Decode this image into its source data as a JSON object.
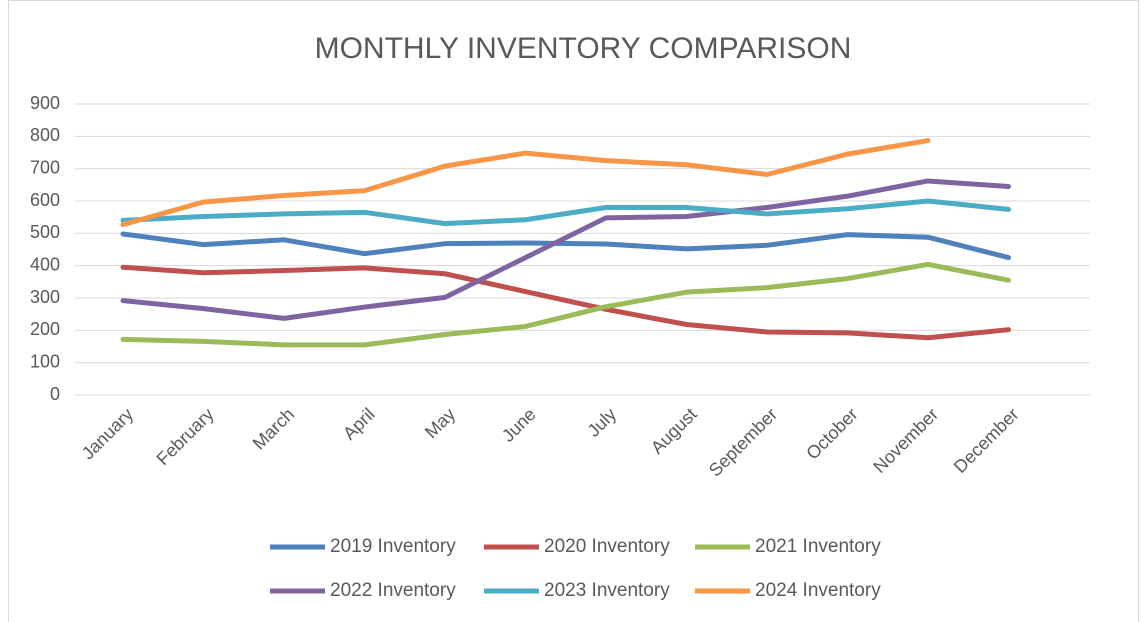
{
  "chart_data": {
    "type": "line",
    "title": "MONTHLY INVENTORY COMPARISON",
    "categories": [
      "January",
      "February",
      "March",
      "April",
      "May",
      "June",
      "July",
      "August",
      "September",
      "October",
      "November",
      "December"
    ],
    "series": [
      {
        "name": "2019 Inventory",
        "color": "#4f81bd",
        "values": [
          498,
          465,
          480,
          437,
          468,
          470,
          467,
          452,
          463,
          496,
          488,
          425
        ]
      },
      {
        "name": "2020 Inventory",
        "color": "#c0504d",
        "values": [
          395,
          378,
          385,
          393,
          375,
          320,
          265,
          218,
          195,
          192,
          177,
          202
        ]
      },
      {
        "name": "2021 Inventory",
        "color": "#9bbb59",
        "values": [
          172,
          166,
          155,
          155,
          187,
          212,
          273,
          318,
          332,
          360,
          404,
          355
        ]
      },
      {
        "name": "2022 Inventory",
        "color": "#8064a2",
        "values": [
          292,
          267,
          237,
          272,
          302,
          425,
          548,
          552,
          580,
          615,
          662,
          645
        ]
      },
      {
        "name": "2023 Inventory",
        "color": "#4bacc6",
        "values": [
          540,
          552,
          560,
          565,
          530,
          542,
          580,
          580,
          560,
          576,
          600,
          574
        ]
      },
      {
        "name": "2024 Inventory",
        "color": "#f79646",
        "values": [
          527,
          597,
          617,
          632,
          708,
          748,
          725,
          712,
          682,
          745,
          787,
          null
        ]
      }
    ],
    "ylim": [
      0,
      900
    ],
    "yticks": [
      0,
      100,
      200,
      300,
      400,
      500,
      600,
      700,
      800,
      900
    ],
    "grid": true,
    "legend": "bottom"
  }
}
